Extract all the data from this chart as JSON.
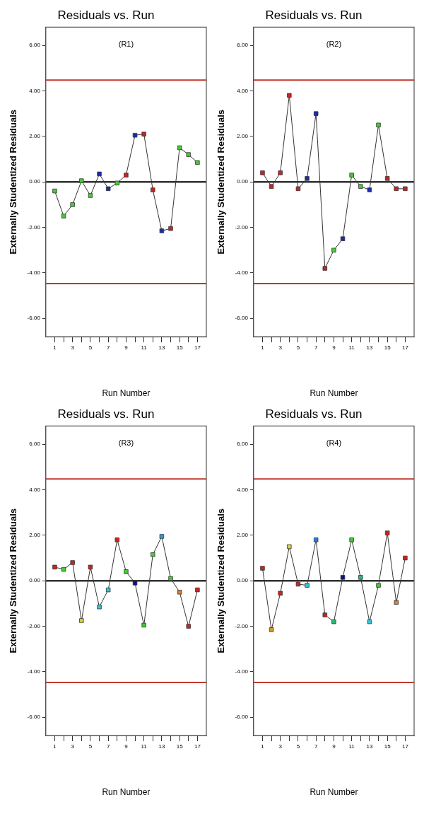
{
  "chart_data": [
    {
      "type": "line",
      "title": "Residuals vs. Run",
      "annotations": [
        "(R1)"
      ],
      "xlabel": "Run Number",
      "ylabel": "Externally Studentized Residuals",
      "marker": "square",
      "x": [
        1,
        2,
        3,
        4,
        5,
        6,
        7,
        8,
        9,
        10,
        11,
        12,
        13,
        14,
        15,
        16,
        17
      ],
      "series": [
        {
          "color": "#333333",
          "colors": [
            "#44cc33",
            "#44cc33",
            "#44cc33",
            "#44cc33",
            "#44cc33",
            "#1a2bb0",
            "#1a2bb0",
            "#44cc33",
            "#cc2222",
            "#1a2bb0",
            "#cc2222",
            "#cc2222",
            "#1a2bb0",
            "#cc2222",
            "#44cc33",
            "#44cc33",
            "#44cc33"
          ],
          "values": [
            -0.4,
            -1.5,
            -1.0,
            0.05,
            -0.6,
            0.35,
            -0.3,
            -0.05,
            0.3,
            2.05,
            2.1,
            -0.35,
            -2.15,
            -2.05,
            1.5,
            1.2,
            0.85
          ]
        }
      ],
      "xlim": [
        0,
        18
      ],
      "xticks": [
        1,
        {
          "value": 2,
          "label": null
        },
        3,
        {
          "value": 4,
          "label": null
        },
        5,
        {
          "value": 6,
          "label": null
        },
        7,
        {
          "value": 8,
          "label": null
        },
        9,
        {
          "value": 10,
          "label": null
        },
        11,
        {
          "value": 12,
          "label": null
        },
        13,
        {
          "value": 14,
          "label": null
        },
        15,
        {
          "value": 16,
          "label": null
        },
        17
      ],
      "ylim": [
        -6.8,
        6.8
      ],
      "yticks": [
        {
          "value": -6,
          "label": "-6.00"
        },
        {
          "value": -4,
          "label": "-4.00"
        },
        {
          "value": -2,
          "label": "-2.00"
        },
        {
          "value": 0,
          "label": "0.00"
        },
        {
          "value": 2,
          "label": "2.00"
        },
        {
          "value": 4,
          "label": "4.00"
        },
        {
          "value": 6,
          "label": "6.00"
        }
      ],
      "ref_lines": [
        {
          "axis": "y",
          "value": 4.47,
          "color": "#c0392b"
        },
        {
          "axis": "y",
          "value": -4.47,
          "color": "#c0392b"
        },
        {
          "axis": "y",
          "value": 0,
          "color": "#333333"
        }
      ],
      "grid": false
    },
    {
      "type": "line",
      "title": "Residuals vs. Run",
      "annotations": [
        "(R2)"
      ],
      "xlabel": "Run Number",
      "ylabel": "Externally Studentized Residuals",
      "marker": "square",
      "x": [
        1,
        2,
        3,
        4,
        5,
        6,
        7,
        8,
        9,
        10,
        11,
        12,
        13,
        14,
        15,
        16,
        17
      ],
      "series": [
        {
          "color": "#333333",
          "colors": [
            "#cc2222",
            "#cc2222",
            "#cc2222",
            "#cc2222",
            "#cc2222",
            "#1a2bb0",
            "#1a2bb0",
            "#cc2222",
            "#44cc33",
            "#1a2bb0",
            "#44cc33",
            "#44cc33",
            "#1a2bb0",
            "#44cc33",
            "#cc2222",
            "#cc2222",
            "#cc2222"
          ],
          "values": [
            0.4,
            -0.2,
            0.4,
            3.8,
            -0.3,
            0.15,
            3.0,
            -3.8,
            -3.0,
            -2.5,
            0.3,
            -0.2,
            -0.35,
            2.5,
            0.15,
            -0.3,
            -0.3
          ]
        }
      ],
      "xlim": [
        0,
        18
      ],
      "xticks": [
        1,
        {
          "value": 2,
          "label": null
        },
        3,
        {
          "value": 4,
          "label": null
        },
        5,
        {
          "value": 6,
          "label": null
        },
        7,
        {
          "value": 8,
          "label": null
        },
        9,
        {
          "value": 10,
          "label": null
        },
        11,
        {
          "value": 12,
          "label": null
        },
        13,
        {
          "value": 14,
          "label": null
        },
        15,
        {
          "value": 16,
          "label": null
        },
        17
      ],
      "ylim": [
        -6.8,
        6.8
      ],
      "yticks": [
        {
          "value": -6,
          "label": "-6.00"
        },
        {
          "value": -4,
          "label": "-4.00"
        },
        {
          "value": -2,
          "label": "-2.00"
        },
        {
          "value": 0,
          "label": "0.00"
        },
        {
          "value": 2,
          "label": "2.00"
        },
        {
          "value": 4,
          "label": "4.00"
        },
        {
          "value": 6,
          "label": "6.00"
        }
      ],
      "ref_lines": [
        {
          "axis": "y",
          "value": 4.47,
          "color": "#c0392b"
        },
        {
          "axis": "y",
          "value": -4.47,
          "color": "#c0392b"
        },
        {
          "axis": "y",
          "value": 0,
          "color": "#333333"
        }
      ],
      "grid": false
    },
    {
      "type": "line",
      "title": "Residuals vs. Run",
      "annotations": [
        "(R3)"
      ],
      "xlabel": "Run Number",
      "ylabel": "Externally Studentized Residuals",
      "marker": "square",
      "x": [
        1,
        2,
        3,
        4,
        5,
        6,
        7,
        8,
        9,
        10,
        11,
        12,
        13,
        14,
        15,
        16,
        17
      ],
      "series": [
        {
          "color": "#333333",
          "colors": [
            "#cc2222",
            "#44cc33",
            "#cc2222",
            "#d4d43a",
            "#cc2222",
            "#33c4d4",
            "#33c4d4",
            "#cc2222",
            "#44cc33",
            "#10108a",
            "#44cc33",
            "#44cc33",
            "#2a9ed8",
            "#44cc33",
            "#e07a2a",
            "#cc2222",
            "#cc2222"
          ],
          "values": [
            0.6,
            0.5,
            0.8,
            -1.75,
            0.6,
            -1.15,
            -0.4,
            1.8,
            0.4,
            -0.1,
            -1.95,
            1.15,
            1.95,
            0.1,
            -0.5,
            -2.0,
            -0.4
          ]
        }
      ],
      "xlim": [
        0,
        18
      ],
      "xticks": [
        1,
        {
          "value": 2,
          "label": null
        },
        3,
        {
          "value": 4,
          "label": null
        },
        5,
        {
          "value": 6,
          "label": null
        },
        7,
        {
          "value": 8,
          "label": null
        },
        9,
        {
          "value": 10,
          "label": null
        },
        11,
        {
          "value": 12,
          "label": null
        },
        13,
        {
          "value": 14,
          "label": null
        },
        15,
        {
          "value": 16,
          "label": null
        },
        17
      ],
      "ylim": [
        -6.8,
        6.8
      ],
      "yticks": [
        {
          "value": -6,
          "label": "-6.00"
        },
        {
          "value": -4,
          "label": "-4.00"
        },
        {
          "value": -2,
          "label": "-2.00"
        },
        {
          "value": 0,
          "label": "0.00"
        },
        {
          "value": 2,
          "label": "2.00"
        },
        {
          "value": 4,
          "label": "4.00"
        },
        {
          "value": 6,
          "label": "6.00"
        }
      ],
      "ref_lines": [
        {
          "axis": "y",
          "value": 4.47,
          "color": "#c0392b"
        },
        {
          "axis": "y",
          "value": -4.47,
          "color": "#c0392b"
        },
        {
          "axis": "y",
          "value": 0,
          "color": "#333333"
        }
      ],
      "grid": false
    },
    {
      "type": "line",
      "title": "Residuals vs. Run",
      "annotations": [
        "(R4)"
      ],
      "xlabel": "Run Number",
      "ylabel": "Externally Studentized Residuals",
      "marker": "square",
      "x": [
        1,
        2,
        3,
        4,
        5,
        6,
        7,
        8,
        9,
        10,
        11,
        12,
        13,
        14,
        15,
        16,
        17
      ],
      "series": [
        {
          "color": "#333333",
          "colors": [
            "#cc2222",
            "#d4a020",
            "#cc2222",
            "#d4d43a",
            "#cc2222",
            "#33c4d4",
            "#2a7ed8",
            "#cc2222",
            "#2ab87a",
            "#10108a",
            "#44cc33",
            "#2ab87a",
            "#33c4d4",
            "#44cc33",
            "#cc2222",
            "#e07a2a",
            "#cc2222"
          ],
          "values": [
            0.55,
            -2.15,
            -0.55,
            1.5,
            -0.15,
            -0.2,
            1.8,
            -1.5,
            -1.8,
            0.15,
            1.8,
            0.15,
            -1.8,
            -0.2,
            2.1,
            -0.95,
            1.0
          ]
        }
      ],
      "xlim": [
        0,
        18
      ],
      "xticks": [
        1,
        {
          "value": 2,
          "label": null
        },
        3,
        {
          "value": 4,
          "label": null
        },
        5,
        {
          "value": 6,
          "label": null
        },
        7,
        {
          "value": 8,
          "label": null
        },
        9,
        {
          "value": 10,
          "label": null
        },
        11,
        {
          "value": 12,
          "label": null
        },
        13,
        {
          "value": 14,
          "label": null
        },
        15,
        {
          "value": 16,
          "label": null
        },
        17
      ],
      "ylim": [
        -6.8,
        6.8
      ],
      "yticks": [
        {
          "value": -6,
          "label": "-6.00"
        },
        {
          "value": -4,
          "label": "-4.00"
        },
        {
          "value": -2,
          "label": "-2.00"
        },
        {
          "value": 0,
          "label": "0.00"
        },
        {
          "value": 2,
          "label": "2.00"
        },
        {
          "value": 4,
          "label": "4.00"
        },
        {
          "value": 6,
          "label": "6.00"
        }
      ],
      "ref_lines": [
        {
          "axis": "y",
          "value": 4.47,
          "color": "#c0392b"
        },
        {
          "axis": "y",
          "value": -4.47,
          "color": "#c0392b"
        },
        {
          "axis": "y",
          "value": 0,
          "color": "#333333"
        }
      ],
      "grid": false
    }
  ]
}
